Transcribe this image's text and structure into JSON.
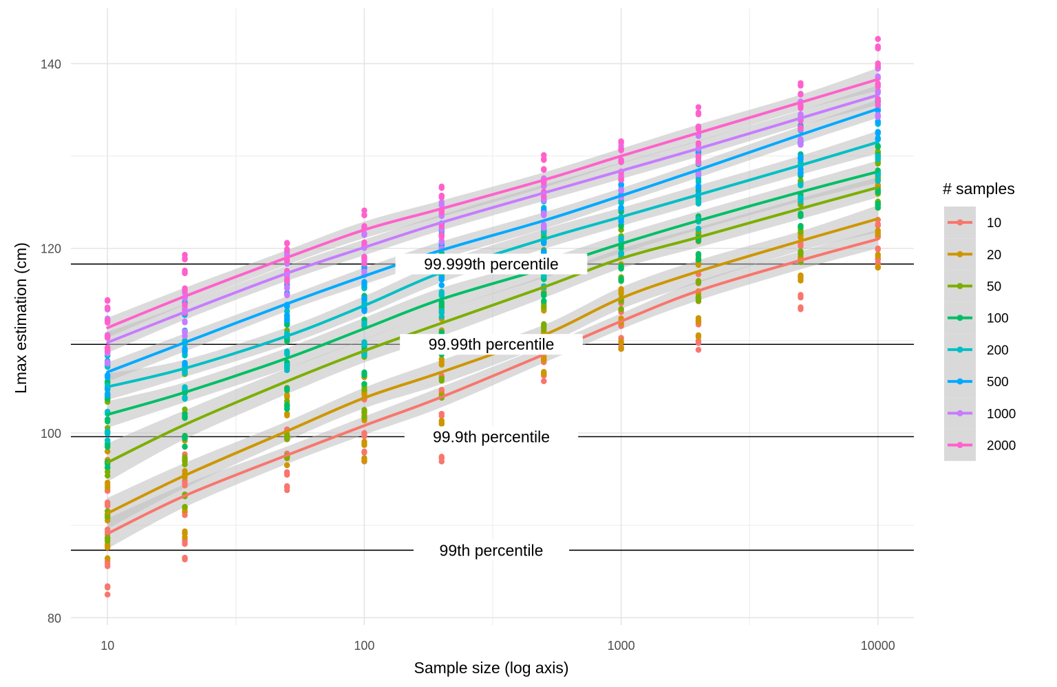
{
  "chart_data": {
    "type": "scatter",
    "xlabel": "Sample size (log axis)",
    "ylabel": "Lmax estimation (cm)",
    "x_scale": "log10",
    "xlim": [
      7.2,
      13800
    ],
    "ylim": [
      79.2,
      146
    ],
    "x_ticks": [
      10,
      100,
      1000,
      10000
    ],
    "x_tick_labels": [
      "10",
      "100",
      "1000",
      "10000"
    ],
    "y_ticks": [
      80,
      100,
      120,
      140
    ],
    "y_tick_labels": [
      "80",
      "100",
      "120",
      "140"
    ],
    "grid": true,
    "x": [
      10,
      20,
      50,
      100,
      200,
      500,
      1000,
      2000,
      5000,
      10000
    ],
    "reference_lines": [
      {
        "label": "99th percentile",
        "y": 87.3
      },
      {
        "label": "99.9th percentile",
        "y": 99.6
      },
      {
        "label": "99.99th percentile",
        "y": 109.6
      },
      {
        "label": "99.999th percentile",
        "y": 118.3
      }
    ],
    "legend": {
      "title": "# samples",
      "position": "right"
    },
    "series": [
      {
        "name": "10",
        "color": "#F8766D",
        "fit": [
          89.1,
          93.2,
          97.6,
          100.8,
          103.9,
          108.5,
          112.1,
          115.4,
          118.7,
          121.0
        ],
        "spread": [
          [
            82.5,
            93.8
          ],
          [
            86.3,
            97.7
          ],
          [
            93.8,
            100.4
          ],
          [
            96.9,
            104.2
          ],
          [
            96.9,
            106.2
          ],
          [
            105.6,
            111.4
          ],
          [
            109.1,
            114.2
          ],
          [
            109.0,
            117.2
          ],
          [
            113.4,
            120.5
          ],
          [
            118.4,
            123.1
          ]
        ]
      },
      {
        "name": "20",
        "color": "#CD9600",
        "fit": [
          91.3,
          95.4,
          100.2,
          103.8,
          106.6,
          110.6,
          114.6,
          117.5,
          120.8,
          123.2
        ],
        "spread": [
          [
            86.4,
            98.0
          ],
          [
            88.7,
            102.1
          ],
          [
            96.5,
            104.9
          ],
          [
            97.0,
            106.4
          ],
          [
            100.0,
            112.4
          ],
          [
            106.4,
            115.6
          ],
          [
            109.1,
            119.5
          ],
          [
            110.4,
            121.5
          ],
          [
            116.5,
            124.9
          ],
          [
            117.9,
            127.4
          ]
        ]
      },
      {
        "name": "50",
        "color": "#7CAE00",
        "fit": [
          96.8,
          100.9,
          105.6,
          108.9,
          111.9,
          115.8,
          118.9,
          121.2,
          124.3,
          126.6
        ],
        "spread": [
          [
            88.3,
            104.3
          ],
          [
            92.0,
            108.9
          ],
          [
            97.3,
            111.1
          ],
          [
            101.7,
            113.5
          ],
          [
            103.8,
            117.8
          ],
          [
            111.2,
            121.5
          ],
          [
            113.4,
            122.0
          ],
          [
            114.3,
            123.4
          ],
          [
            118.5,
            128.2
          ],
          [
            124.9,
            130.5
          ]
        ]
      },
      {
        "name": "100",
        "color": "#00BE67",
        "fit": [
          102.0,
          104.4,
          108.1,
          111.3,
          114.5,
          117.8,
          120.5,
          123.0,
          126.1,
          128.3
        ],
        "spread": [
          [
            96.3,
            105.6
          ],
          [
            98.5,
            107.3
          ],
          [
            102.6,
            112.0
          ],
          [
            105.3,
            115.8
          ],
          [
            108.5,
            119.5
          ],
          [
            114.3,
            121.8
          ],
          [
            116.5,
            124.4
          ],
          [
            118.8,
            126.3
          ],
          [
            122.3,
            130.2
          ],
          [
            124.4,
            131.1
          ]
        ]
      },
      {
        "name": "200",
        "color": "#00BFC4",
        "fit": [
          105.0,
          107.0,
          110.5,
          113.8,
          117.4,
          121.0,
          123.4,
          125.8,
          129.0,
          131.5
        ],
        "spread": [
          [
            99.2,
            108.4
          ],
          [
            103.7,
            110.0
          ],
          [
            106.8,
            113.2
          ],
          [
            108.4,
            116.2
          ],
          [
            112.6,
            121.6
          ],
          [
            115.8,
            124.4
          ],
          [
            119.1,
            126.4
          ],
          [
            122.1,
            129.8
          ],
          [
            125.1,
            133.0
          ],
          [
            127.3,
            134.3
          ]
        ]
      },
      {
        "name": "500",
        "color": "#00A9FF",
        "fit": [
          106.6,
          109.8,
          114.0,
          117.0,
          119.8,
          123.0,
          125.7,
          128.5,
          132.3,
          135.1
        ],
        "spread": [
          [
            104.1,
            109.2
          ],
          [
            107.2,
            114.2
          ],
          [
            112.2,
            116.4
          ],
          [
            113.2,
            119.1
          ],
          [
            116.0,
            122.7
          ],
          [
            119.5,
            125.3
          ],
          [
            122.9,
            127.4
          ],
          [
            125.8,
            130.6
          ],
          [
            128.1,
            134.0
          ],
          [
            131.8,
            136.2
          ]
        ]
      },
      {
        "name": "1000",
        "color": "#C77CFF",
        "fit": [
          109.8,
          113.1,
          117.3,
          120.1,
          122.8,
          126.0,
          128.4,
          130.8,
          134.1,
          136.6
        ],
        "spread": [
          [
            107.5,
            113.6
          ],
          [
            110.5,
            115.2
          ],
          [
            114.9,
            119.5
          ],
          [
            117.1,
            122.2
          ],
          [
            119.9,
            125.0
          ],
          [
            122.2,
            127.6
          ],
          [
            125.5,
            131.1
          ],
          [
            128.0,
            133.2
          ],
          [
            131.2,
            135.9
          ],
          [
            134.2,
            139.6
          ]
        ]
      },
      {
        "name": "2000",
        "color": "#FF61CC",
        "fit": [
          111.4,
          114.8,
          119.0,
          122.0,
          124.3,
          127.4,
          130.0,
          132.5,
          135.8,
          138.3
        ],
        "spread": [
          [
            108.9,
            114.4
          ],
          [
            113.0,
            119.3
          ],
          [
            116.4,
            120.6
          ],
          [
            118.3,
            124.1
          ],
          [
            121.2,
            126.7
          ],
          [
            125.6,
            130.1
          ],
          [
            127.4,
            131.6
          ],
          [
            129.4,
            135.3
          ],
          [
            133.0,
            137.9
          ],
          [
            135.6,
            142.7
          ]
        ]
      }
    ]
  }
}
